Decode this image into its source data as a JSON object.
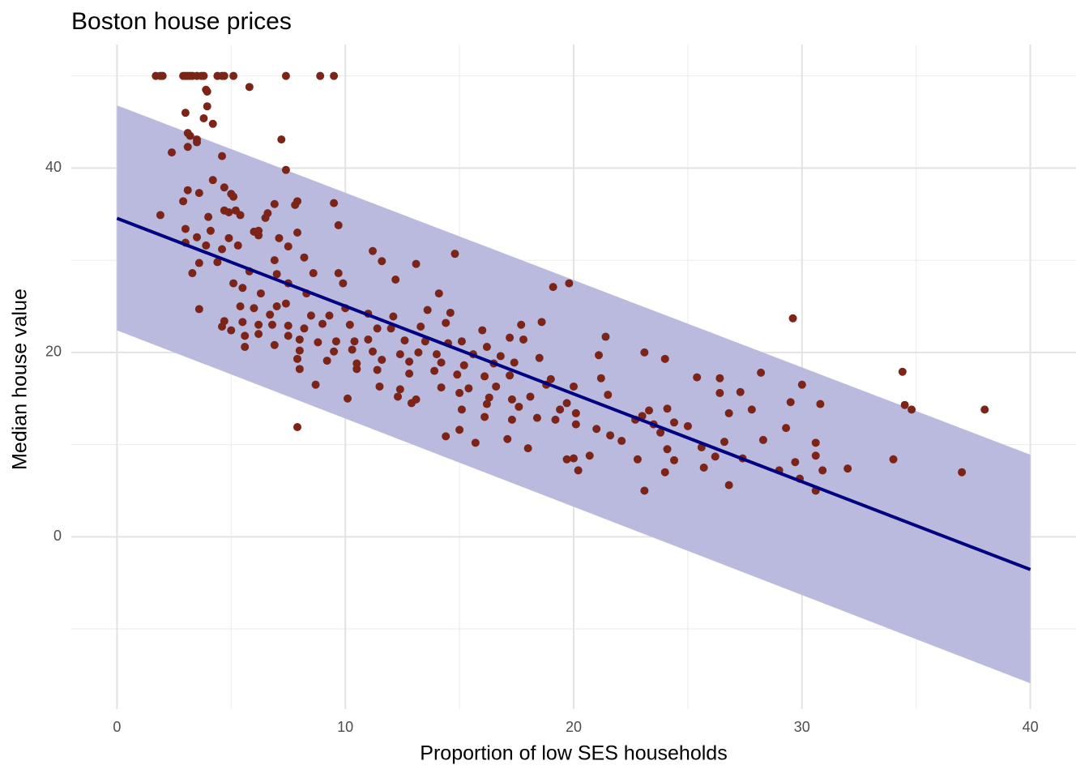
{
  "chart_data": {
    "type": "scatter",
    "title": "Boston house prices",
    "x_label": "Proportion of low SES households",
    "y_label": "Median house value",
    "xlim": [
      -2,
      42
    ],
    "ylim": [
      -18.7,
      53.4
    ],
    "xticks": [
      0,
      10,
      20,
      30,
      40
    ],
    "yticks": [
      0,
      20,
      40
    ],
    "x_minor_grid": [
      5,
      15,
      25,
      35
    ],
    "y_minor_grid": [
      -10,
      10,
      30,
      50
    ],
    "grid": true,
    "band": {
      "color": "#b9bade",
      "x": [
        0,
        40
      ],
      "lower": [
        22.4,
        -15.9
      ],
      "upper": [
        46.8,
        8.9
      ]
    },
    "fit": {
      "color": "#000080",
      "x": [
        0,
        40
      ],
      "y": [
        34.55,
        -3.56
      ]
    },
    "points": {
      "color": "#7b2417",
      "x": [
        1.7,
        1.9,
        2.0,
        2.9,
        3.0,
        3.1,
        3.2,
        3.3,
        3.5,
        3.7,
        3.8,
        4.4,
        4.6,
        4.7,
        5.1,
        7.4,
        8.9,
        9.5,
        5.8,
        3.9,
        3.95,
        3.95,
        3.0,
        3.8,
        4.2,
        3.1,
        3.2,
        3.5,
        7.2,
        3.1,
        3.5,
        2.4,
        4.6,
        7.4,
        4.2,
        3.1,
        3.6,
        4.7,
        5.0,
        5.1,
        2.9,
        6.9,
        7.9,
        7.8,
        9.5,
        5.2,
        5.4,
        4.7,
        4.9,
        6.6,
        6.5,
        1.9,
        4.0,
        9.7,
        3.0,
        4.1,
        6.0,
        6.2,
        7.9,
        3.5,
        4.9,
        6.2,
        7.1,
        3.0,
        3.9,
        5.3,
        4.6,
        7.5,
        11.2,
        14.8,
        3.6,
        4.4,
        8.2,
        6.9,
        11.6,
        13.1,
        3.3,
        5.8,
        7.0,
        9.7,
        8.6,
        12.2,
        5.1,
        5.5,
        7.5,
        9.9,
        19.1,
        19.8,
        8.3,
        6.3,
        14.1,
        5.4,
        6.0,
        6.7,
        7.0,
        7.4,
        3.6,
        8.5,
        9.3,
        10.0,
        11.0,
        12.1,
        13.6,
        14.6,
        4.7,
        5.5,
        6.2,
        6.8,
        7.5,
        8.2,
        9.0,
        10.2,
        11.4,
        12.0,
        13.3,
        14.4,
        16.0,
        17.2,
        17.7,
        18.6,
        21.4,
        4.6,
        5.0,
        5.6,
        6.2,
        7.5,
        8.0,
        8.8,
        9.6,
        10.4,
        11.0,
        12.6,
        13.5,
        14.5,
        15.1,
        16.2,
        17.8,
        5.6,
        6.9,
        8.0,
        9.5,
        10.3,
        11.2,
        12.4,
        13.2,
        14.0,
        15.6,
        16.8,
        21.1,
        23.1,
        24.0,
        7.9,
        9.2,
        10.5,
        11.6,
        12.8,
        14.2,
        15.2,
        16.5,
        17.4,
        18.5,
        8.0,
        10.5,
        11.4,
        12.8,
        13.9,
        14.9,
        16.1,
        17.2,
        19.0,
        21.2,
        25.4,
        26.4,
        28.2,
        8.7,
        11.5,
        12.4,
        14.2,
        15.4,
        16.6,
        18.8,
        20.0,
        26.4,
        27.3,
        30.0,
        34.4,
        10.1,
        12.3,
        13.1,
        15.0,
        16.3,
        17.3,
        18.1,
        19.7,
        21.5,
        12.9,
        16.2,
        17.6,
        19.4,
        20.1,
        23.0,
        23.3,
        24.1,
        26.8,
        27.8,
        29.5,
        30.8,
        34.5,
        34.8,
        38.0,
        15.1,
        16.1,
        17.3,
        18.4,
        19.2,
        20.1,
        21.0,
        22.7,
        23.5,
        24.4,
        25.0,
        7.9,
        15.0,
        17.1,
        14.4,
        15.7,
        18.0,
        20.7,
        21.6,
        22.1,
        23.8,
        24.1,
        25.6,
        26.6,
        28.3,
        29.3,
        30.6,
        19.7,
        20.0,
        22.8,
        24.4,
        26.2,
        27.4,
        29.7,
        30.6,
        34.0,
        20.2,
        24.0,
        25.7,
        29.0,
        30.9,
        32.0,
        37.0,
        26.8,
        23.1,
        30.6,
        29.9,
        29.6
      ],
      "y": [
        50,
        50,
        50,
        50,
        50,
        50,
        50,
        50,
        50,
        50,
        50,
        50,
        50,
        50,
        50,
        50,
        50,
        50,
        48.8,
        48.5,
        48.3,
        46.7,
        46.0,
        45.4,
        44.8,
        43.8,
        43.5,
        43.1,
        43.1,
        42.3,
        42.8,
        41.7,
        41.3,
        39.8,
        38.7,
        37.6,
        37.3,
        37.9,
        37.2,
        36.9,
        36.4,
        36.1,
        36.4,
        36.0,
        36.2,
        35.4,
        34.9,
        35.4,
        35.2,
        35.1,
        34.6,
        34.9,
        34.7,
        33.8,
        33.4,
        33.2,
        33.1,
        33.2,
        33.0,
        32.5,
        32.4,
        32.7,
        32.4,
        31.9,
        31.6,
        31.6,
        31.2,
        31.5,
        31.0,
        30.7,
        29.7,
        29.8,
        30.3,
        30.0,
        29.9,
        29.6,
        28.6,
        28.8,
        28.5,
        28.6,
        28.6,
        27.9,
        27.5,
        27.0,
        27.5,
        27.5,
        27.1,
        27.5,
        26.4,
        26.4,
        26.4,
        25.0,
        24.8,
        24.1,
        25.0,
        25.3,
        24.7,
        24.0,
        24.0,
        24.8,
        24.2,
        23.9,
        24.6,
        24.3,
        23.4,
        23.3,
        23.0,
        23.0,
        22.9,
        22.6,
        23.1,
        23.0,
        22.6,
        22.6,
        22.8,
        23.2,
        22.4,
        21.6,
        23.0,
        23.3,
        21.7,
        22.8,
        22.4,
        21.8,
        22.0,
        21.8,
        21.4,
        21.1,
        21.2,
        21.2,
        21.4,
        21.3,
        21.2,
        21.0,
        21.2,
        20.6,
        21.4,
        20.6,
        20.8,
        20.2,
        20.1,
        20.3,
        20.1,
        19.8,
        20.0,
        19.8,
        19.8,
        19.6,
        19.7,
        20.0,
        19.3,
        19.3,
        19.1,
        18.8,
        19.2,
        19.0,
        18.9,
        18.6,
        18.8,
        18.9,
        19.4,
        18.2,
        18.2,
        18.1,
        17.7,
        18.0,
        17.6,
        17.4,
        17.5,
        17.1,
        17.2,
        17.3,
        17.2,
        17.8,
        16.5,
        16.3,
        16.0,
        16.2,
        16.1,
        16.3,
        16.5,
        16.3,
        15.6,
        15.7,
        16.5,
        17.9,
        15.0,
        15.2,
        14.9,
        15.6,
        15.1,
        14.9,
        15.2,
        14.5,
        15.4,
        14.5,
        14.4,
        14.1,
        13.8,
        13.4,
        13.1,
        13.7,
        13.9,
        13.4,
        13.8,
        14.6,
        14.4,
        14.3,
        13.8,
        13.8,
        13.8,
        13.0,
        12.7,
        12.9,
        12.7,
        12.2,
        11.7,
        12.7,
        12.2,
        12.4,
        12.0,
        11.9,
        11.6,
        10.6,
        10.9,
        10.2,
        9.6,
        8.8,
        11.0,
        10.4,
        11.3,
        9.5,
        9.7,
        10.3,
        10.5,
        11.8,
        10.2,
        8.4,
        8.5,
        8.4,
        8.3,
        8.7,
        8.5,
        8.1,
        8.8,
        8.4,
        7.2,
        7.0,
        7.5,
        7.2,
        7.2,
        7.4,
        7.0,
        5.6,
        5.0,
        5.0,
        6.3,
        23.7
      ]
    }
  }
}
